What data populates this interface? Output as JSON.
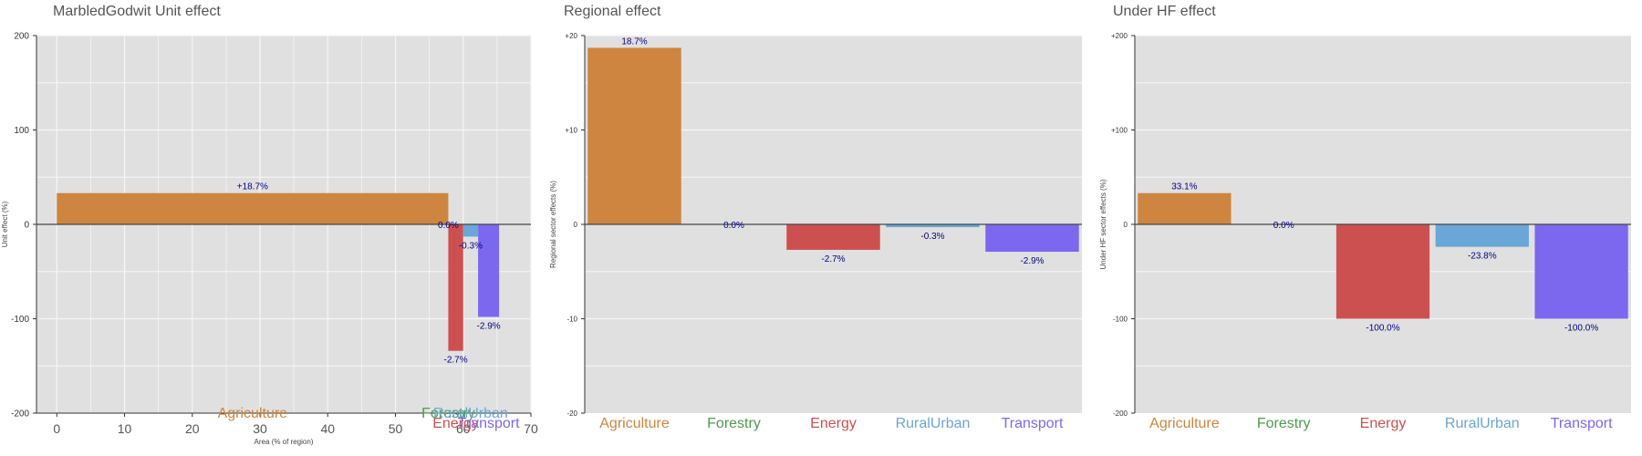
{
  "colors": {
    "plot_bg": "#e0e0e0",
    "grid": "#f5f5f5",
    "axis": "#333333",
    "data_label": "#000080",
    "Agriculture": "#cd853f",
    "Forestry": "#4f9a4f",
    "Energy": "#cd5050",
    "RuralUrban": "#6aa6d6",
    "Transport": "#7b68ee"
  },
  "chart_data": [
    {
      "id": "unit",
      "type": "bar",
      "title": "MarbledGodwit Unit effect",
      "xlabel": "Area (% of region)",
      "ylabel": "Unit effect (%)",
      "xlim": [
        -3,
        70
      ],
      "ylim": [
        -200,
        200
      ],
      "yticks": [
        200,
        100,
        0,
        -100,
        -200
      ],
      "ytick_labels": [
        "200",
        "100",
        "0",
        "-100",
        "-200"
      ],
      "xticks": [
        0,
        10,
        20,
        30,
        40,
        50,
        60,
        70
      ],
      "xtick_labels": [
        "0",
        "10",
        "20",
        "30",
        "40",
        "50",
        "60",
        "70"
      ],
      "grid": true,
      "categories": [
        "Agriculture",
        "Forestry",
        "Energy",
        "RuralUrban",
        "Transport"
      ],
      "x_start": [
        0,
        57.8,
        57.8,
        60.0,
        62.2
      ],
      "x_end": [
        57.8,
        57.8,
        60.0,
        62.2,
        65.3
      ],
      "values": [
        33.1,
        0,
        -134,
        -13,
        -98
      ],
      "data_labels": [
        "+18.7%",
        "0.0%",
        "-2.7%",
        "-0.3%",
        "-2.9%"
      ]
    },
    {
      "id": "regional",
      "type": "bar",
      "title": "Regional effect",
      "xlabel": "",
      "ylabel": "Regional sector effects (%)",
      "ylim": [
        -20,
        20
      ],
      "yticks": [
        20,
        10,
        0,
        -10,
        -20
      ],
      "ytick_labels": [
        "+20",
        "+10",
        "0",
        "-10",
        "-20"
      ],
      "grid": true,
      "categories": [
        "Agriculture",
        "Forestry",
        "Energy",
        "RuralUrban",
        "Transport"
      ],
      "values": [
        18.7,
        0,
        -2.7,
        -0.3,
        -2.9
      ],
      "data_labels": [
        "18.7%",
        "0.0%",
        "-2.7%",
        "-0.3%",
        "-2.9%"
      ]
    },
    {
      "id": "underhf",
      "type": "bar",
      "title": "Under HF effect",
      "xlabel": "",
      "ylabel": "Under HF sector effects (%)",
      "ylim": [
        -200,
        200
      ],
      "yticks": [
        200,
        100,
        0,
        -100,
        -200
      ],
      "ytick_labels": [
        "+200",
        "+100",
        "0",
        "-100",
        "-200"
      ],
      "grid": true,
      "categories": [
        "Agriculture",
        "Forestry",
        "Energy",
        "RuralUrban",
        "Transport"
      ],
      "values": [
        33.1,
        0,
        -100,
        -23.8,
        -100
      ],
      "data_labels": [
        "33.1%",
        "0.0%",
        "-100.0%",
        "-23.8%",
        "-100.0%"
      ]
    }
  ]
}
